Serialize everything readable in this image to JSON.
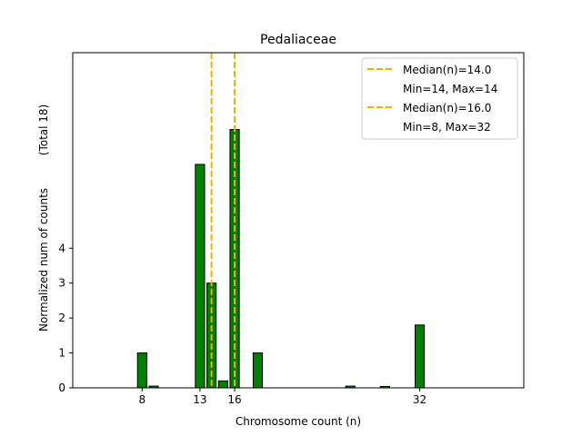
{
  "chart_data": {
    "type": "bar",
    "title": "Pedaliaceae",
    "xlabel": "Chromosome count (n)",
    "ylabel": "Normalized num of counts",
    "ylabel_note": "(Total 18)",
    "xlim": [
      2,
      41
    ],
    "ylim": [
      0,
      9.6
    ],
    "xticks": [
      8,
      13,
      16,
      32
    ],
    "yticks": [
      0,
      1,
      2,
      3,
      4
    ],
    "bar_color": "#008000",
    "bar_edge": "#000000",
    "bar_width": 0.8,
    "bars": [
      {
        "x": 8,
        "value": 1.0
      },
      {
        "x": 9,
        "value": 0.05
      },
      {
        "x": 13,
        "value": 6.4
      },
      {
        "x": 14,
        "value": 3.0
      },
      {
        "x": 15,
        "value": 0.2
      },
      {
        "x": 16,
        "value": 7.4
      },
      {
        "x": 18,
        "value": 1.0
      },
      {
        "x": 26,
        "value": 0.05
      },
      {
        "x": 29,
        "value": 0.04
      },
      {
        "x": 32,
        "value": 1.8
      }
    ],
    "median_lines": [
      {
        "x": 14.0,
        "color": "#f0b000"
      },
      {
        "x": 16.0,
        "color": "#f0b000"
      }
    ],
    "legend": {
      "placement": "top-right",
      "entries": [
        {
          "label": "Median(n)=14.0",
          "sub": "Min=14, Max=14"
        },
        {
          "label": "Median(n)=16.0",
          "sub": "Min=8, Max=32"
        }
      ]
    }
  }
}
